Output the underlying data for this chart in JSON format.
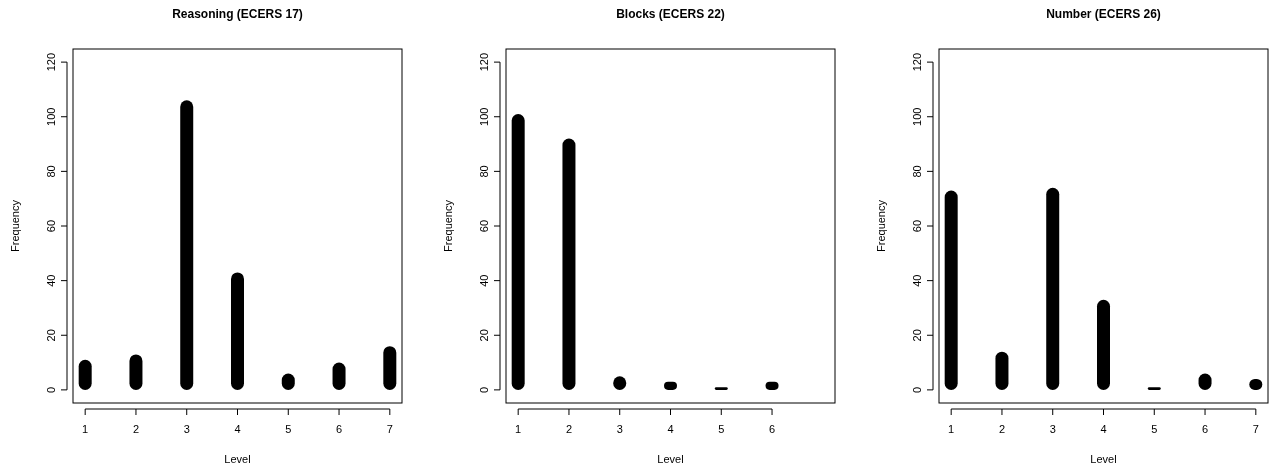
{
  "chart_data": [
    {
      "type": "bar",
      "title": "Reasoning (ECERS 17)",
      "xlabel": "Level",
      "ylabel": "Frequency",
      "x": [
        1,
        2,
        3,
        4,
        5,
        6,
        7
      ],
      "values": [
        11,
        13,
        106,
        43,
        6,
        10,
        16
      ],
      "color": "#000000",
      "xlim": [
        0.76,
        7.24
      ],
      "xticks": [
        1,
        2,
        3,
        4,
        5,
        6,
        7
      ],
      "ylim": [
        -4.8,
        124.8
      ],
      "yticks": [
        0,
        20,
        40,
        60,
        80,
        100,
        120
      ]
    },
    {
      "type": "bar",
      "title": "Blocks (ECERS 22)",
      "xlabel": "Level",
      "ylabel": "Frequency",
      "x": [
        1,
        2,
        3,
        4,
        5,
        6
      ],
      "values": [
        101,
        92,
        5,
        3,
        1,
        3
      ],
      "color": "#000000",
      "xlim": [
        0.76,
        7.24
      ],
      "xticks": [
        1,
        2,
        3,
        4,
        5,
        6
      ],
      "ylim": [
        -4.8,
        124.8
      ],
      "yticks": [
        0,
        20,
        40,
        60,
        80,
        100,
        120
      ]
    },
    {
      "type": "bar",
      "title": "Number (ECERS 26)",
      "xlabel": "Level",
      "ylabel": "Frequency",
      "x": [
        1,
        2,
        3,
        4,
        5,
        6,
        7
      ],
      "values": [
        73,
        14,
        74,
        33,
        1,
        6,
        4
      ],
      "color": "#000000",
      "xlim": [
        0.76,
        7.24
      ],
      "xticks": [
        1,
        2,
        3,
        4,
        5,
        6,
        7
      ],
      "ylim": [
        -4.8,
        124.8
      ],
      "yticks": [
        0,
        20,
        40,
        60,
        80,
        100,
        120
      ]
    }
  ]
}
